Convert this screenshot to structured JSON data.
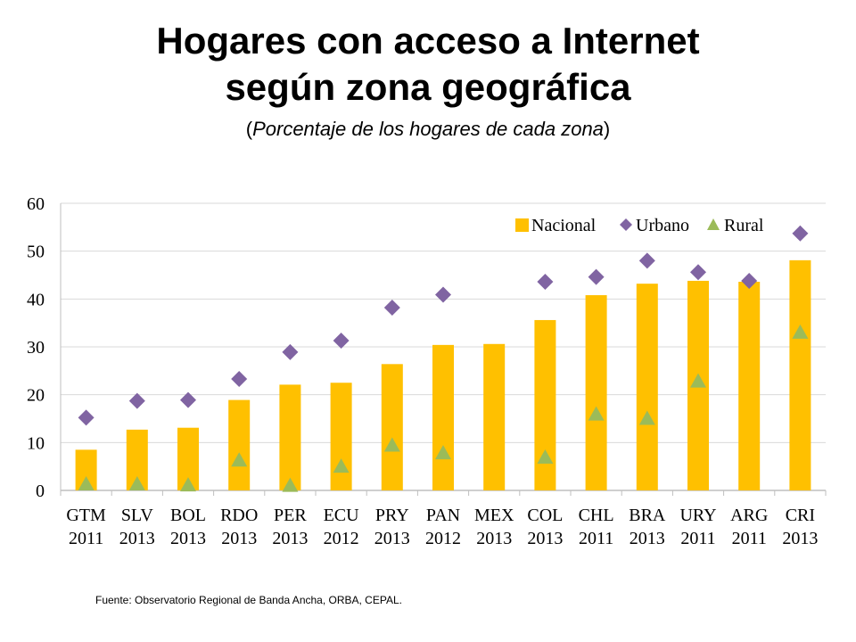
{
  "title_line1": "Hogares con acceso a Internet",
  "title_line2": "según zona geográfica",
  "subtitle_open": "(",
  "subtitle_text": "Porcentaje de los hogares de cada zona",
  "subtitle_close": ")",
  "source": "Fuente: Observatorio Regional de Banda Ancha, ORBA, CEPAL.",
  "colors": {
    "nacional": "#FFC000",
    "urbano": "#8064A2",
    "rural": "#9BBB59",
    "grid": "#D9D9D9",
    "axis": "#BFBFBF"
  },
  "chart_data": {
    "type": "bar",
    "title": "Hogares con acceso a Internet según zona geográfica",
    "subtitle": "(Porcentaje de los hogares de cada zona)",
    "categories": [
      "GTM",
      "SLV",
      "BOL",
      "RDO",
      "PER",
      "ECU",
      "PRY",
      "PAN",
      "MEX",
      "COL",
      "CHL",
      "BRA",
      "URY",
      "ARG",
      "CRI"
    ],
    "years": [
      "2011",
      "2013",
      "2013",
      "2013",
      "2013",
      "2012",
      "2013",
      "2012",
      "2013",
      "2013",
      "2011",
      "2013",
      "2011",
      "2011",
      "2013"
    ],
    "ylim": [
      0,
      60
    ],
    "yticks": [
      0,
      10,
      20,
      30,
      40,
      50,
      60
    ],
    "grid": true,
    "legend": "top-right",
    "series": [
      {
        "name": "Nacional",
        "kind": "bar",
        "values": [
          8.5,
          12.7,
          13.1,
          18.9,
          22.1,
          22.5,
          26.4,
          30.4,
          30.6,
          35.6,
          40.8,
          43.2,
          43.8,
          43.6,
          48.1
        ]
      },
      {
        "name": "Urbano",
        "kind": "diamond",
        "values": [
          15.2,
          18.7,
          18.9,
          23.3,
          28.9,
          31.3,
          38.2,
          40.9,
          null,
          43.6,
          44.6,
          48.0,
          45.6,
          43.8,
          53.7
        ]
      },
      {
        "name": "Rural",
        "kind": "triangle",
        "values": [
          1.3,
          1.3,
          1.1,
          6.3,
          1.0,
          5.0,
          9.4,
          7.8,
          null,
          6.9,
          15.9,
          15.0,
          22.8,
          null,
          33.0
        ]
      }
    ]
  }
}
